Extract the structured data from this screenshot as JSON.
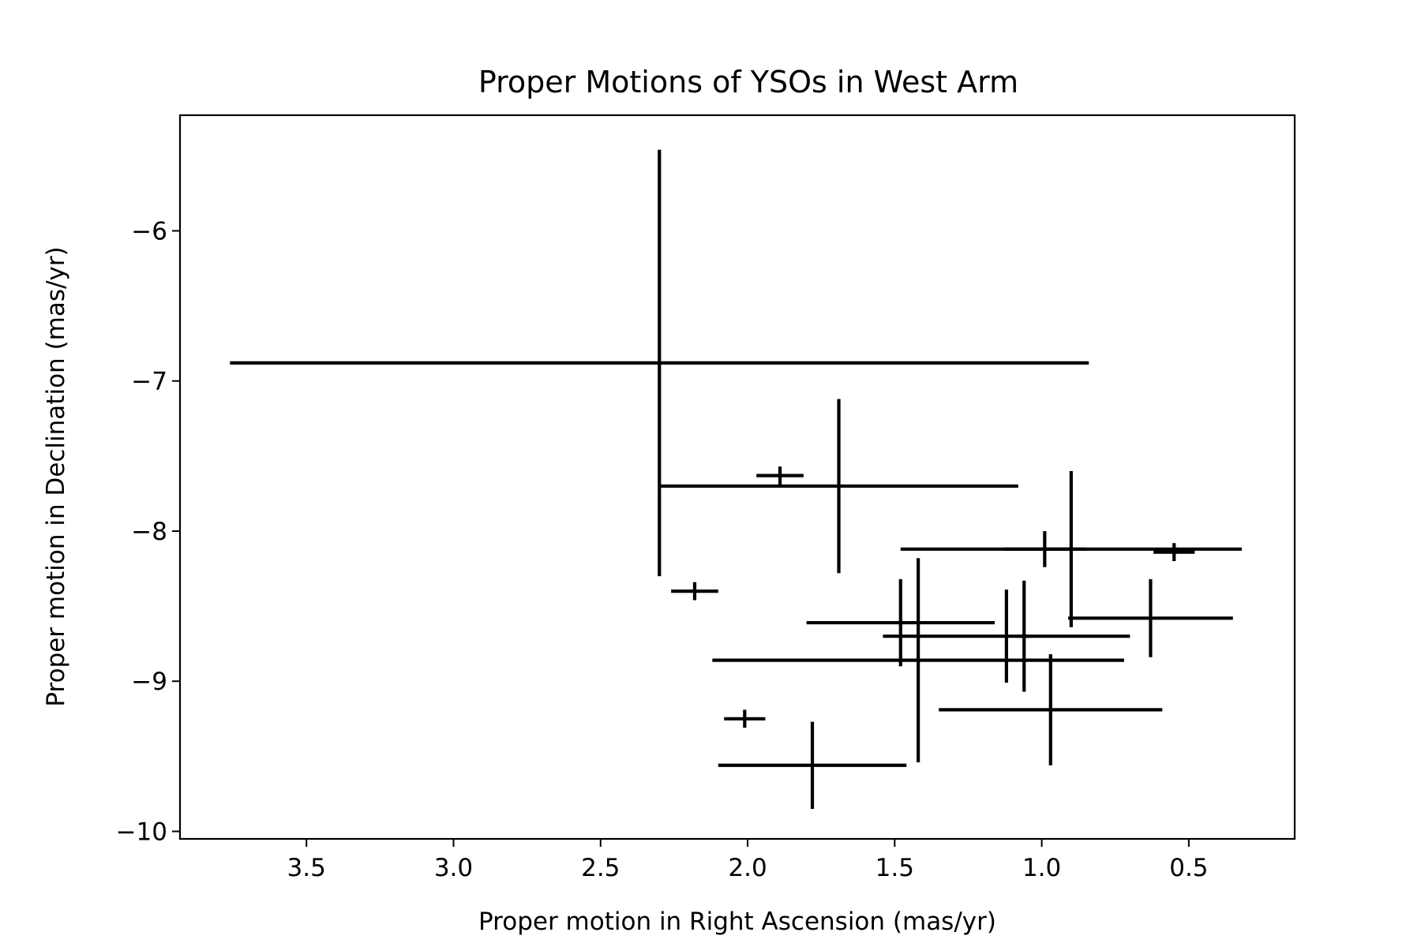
{
  "chart_data": {
    "type": "scatter",
    "title": "Proper Motions of YSOs in West Arm",
    "xlabel": "Proper motion in Right Ascension (mas/yr)",
    "ylabel": "Proper motion in Declination (mas/yr)",
    "x_inverted": true,
    "xlim": [
      3.93,
      0.14
    ],
    "ylim": [
      -10.05,
      -5.23
    ],
    "xticks": [
      {
        "value": 3.5,
        "label": "3.5"
      },
      {
        "value": 3.0,
        "label": "3.0"
      },
      {
        "value": 2.5,
        "label": "2.5"
      },
      {
        "value": 2.0,
        "label": "2.0"
      },
      {
        "value": 1.5,
        "label": "1.5"
      },
      {
        "value": 1.0,
        "label": "1.0"
      },
      {
        "value": 0.5,
        "label": "0.5"
      }
    ],
    "yticks": [
      {
        "value": -6,
        "label": "−6"
      },
      {
        "value": -7,
        "label": "−7"
      },
      {
        "value": -8,
        "label": "−8"
      },
      {
        "value": -9,
        "label": "−9"
      },
      {
        "value": -10,
        "label": "−10"
      }
    ],
    "grid": false,
    "legend": "none",
    "marker": "none",
    "error_color": "#000000",
    "points": [
      {
        "x": 2.3,
        "y": -6.88,
        "xerr": 1.46,
        "yerr": 1.42
      },
      {
        "x": 1.69,
        "y": -7.7,
        "xerr": 0.61,
        "yerr": 0.58
      },
      {
        "x": 1.89,
        "y": -7.63,
        "xerr": 0.08,
        "yerr": 0.06
      },
      {
        "x": 2.18,
        "y": -8.4,
        "xerr": 0.08,
        "yerr": 0.06
      },
      {
        "x": 2.01,
        "y": -9.25,
        "xerr": 0.07,
        "yerr": 0.06
      },
      {
        "x": 1.78,
        "y": -9.56,
        "xerr": 0.32,
        "yerr": 0.29
      },
      {
        "x": 1.48,
        "y": -8.61,
        "xerr": 0.32,
        "yerr": 0.29
      },
      {
        "x": 1.42,
        "y": -8.86,
        "xerr": 0.7,
        "yerr": 0.68
      },
      {
        "x": 1.12,
        "y": -8.7,
        "xerr": 0.42,
        "yerr": 0.31
      },
      {
        "x": 1.06,
        "y": -8.7,
        "xerr": 0.02,
        "yerr": 0.37
      },
      {
        "x": 0.97,
        "y": -9.19,
        "xerr": 0.38,
        "yerr": 0.37
      },
      {
        "x": 0.9,
        "y": -8.12,
        "xerr": 0.58,
        "yerr": 0.52
      },
      {
        "x": 0.99,
        "y": -8.12,
        "xerr": 0.14,
        "yerr": 0.12
      },
      {
        "x": 0.63,
        "y": -8.58,
        "xerr": 0.28,
        "yerr": 0.26
      },
      {
        "x": 0.55,
        "y": -8.14,
        "xerr": 0.07,
        "yerr": 0.06
      }
    ]
  }
}
